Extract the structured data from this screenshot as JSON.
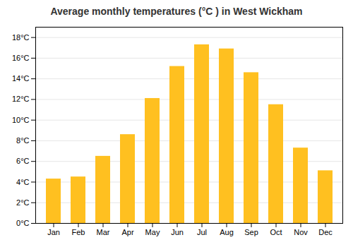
{
  "chart_data": {
    "type": "bar",
    "title": "Average monthly temperatures (°C ) in West Wickham",
    "categories": [
      "Jan",
      "Feb",
      "Mar",
      "Apr",
      "May",
      "Jun",
      "Jul",
      "Aug",
      "Sep",
      "Oct",
      "Nov",
      "Dec"
    ],
    "values": [
      4.3,
      4.5,
      6.5,
      8.6,
      12.1,
      15.2,
      17.3,
      16.9,
      14.6,
      11.5,
      7.3,
      5.1
    ],
    "color": "#FFC020",
    "ylim": [
      0,
      19
    ],
    "yticks": [
      {
        "value": 0,
        "label": "0°C"
      },
      {
        "value": 2,
        "label": "2°C"
      },
      {
        "value": 4,
        "label": "4°C"
      },
      {
        "value": 6,
        "label": "6°C"
      },
      {
        "value": 8,
        "label": "8°C"
      },
      {
        "value": 10,
        "label": "10°C"
      },
      {
        "value": 12,
        "label": "12°C"
      },
      {
        "value": 14,
        "label": "14°C"
      },
      {
        "value": 16,
        "label": "16°C"
      },
      {
        "value": 18,
        "label": "18°C"
      }
    ],
    "grid": true
  }
}
